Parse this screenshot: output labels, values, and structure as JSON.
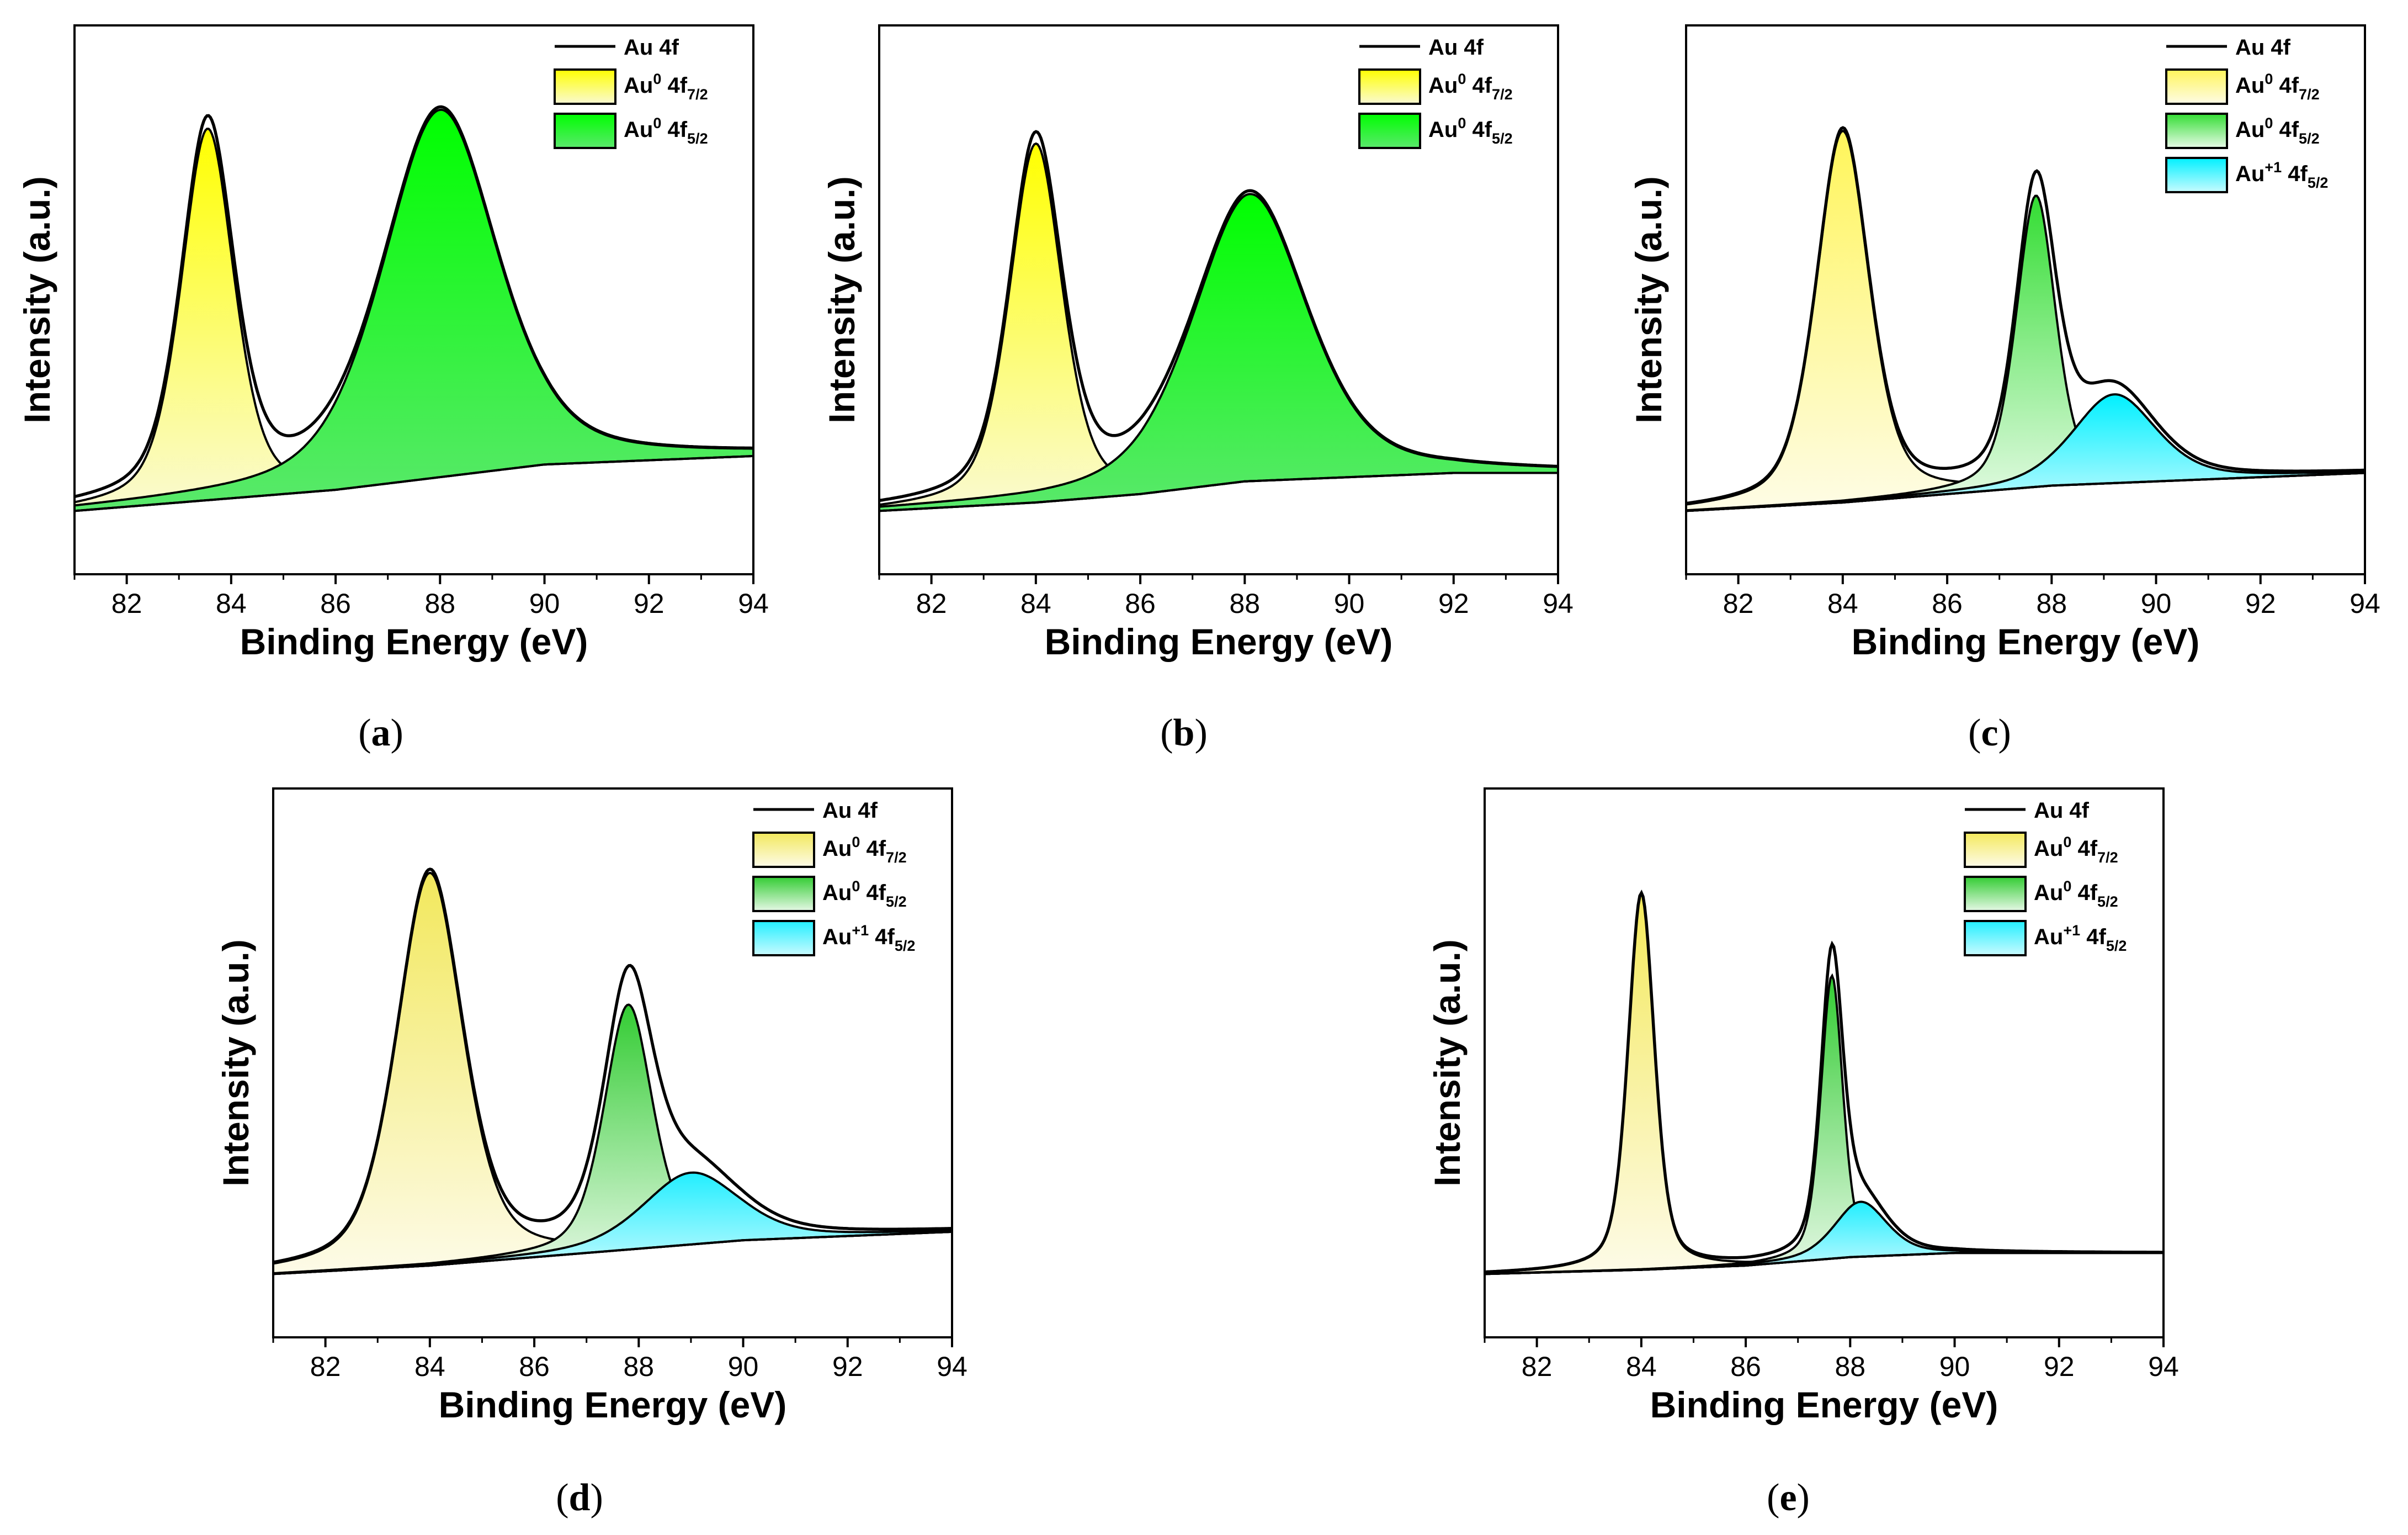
{
  "figure": {
    "panel_count": 5
  },
  "chart_data": [
    {
      "type": "area",
      "panel_label": "a",
      "caption": {
        "open": "(",
        "letter": "a",
        "close": ")"
      },
      "xlabel": "Binding Energy (eV)",
      "ylabel": "Intensity (a.u.)",
      "xlim": [
        81,
        94
      ],
      "ylim": [
        -0.15,
        1.15
      ],
      "xticks": [
        82,
        84,
        86,
        88,
        90,
        92,
        94
      ],
      "legend_position": "top-right",
      "background": {
        "x": [
          81,
          84,
          86,
          88,
          90,
          92,
          94
        ],
        "y": [
          0.0,
          0.03,
          0.05,
          0.08,
          0.11,
          0.12,
          0.13
        ]
      },
      "total_label": "Au 4f",
      "components": [
        {
          "name": "Au0 4f7/2",
          "label_base": "Au",
          "label_sup": "0",
          "label_main": " 4f",
          "label_sub": "7/2",
          "center": 83.55,
          "height": 0.88,
          "width": 0.6,
          "color_top": "#ffff00",
          "color_bottom": "#fafad2"
        },
        {
          "name": "Au0 4f5/2",
          "label_base": "Au",
          "label_sup": "0",
          "label_main": " 4f",
          "label_sub": "5/2",
          "center": 88.0,
          "height": 0.87,
          "width": 1.3,
          "color_top": "#00ff00",
          "color_bottom": "#5ae86c"
        }
      ]
    },
    {
      "type": "area",
      "panel_label": "b",
      "caption": {
        "open": "(",
        "letter": "b",
        "close": ")"
      },
      "xlabel": "Binding Energy (eV)",
      "ylabel": "Intensity (a.u.)",
      "xlim": [
        81,
        94
      ],
      "ylim": [
        -0.15,
        1.15
      ],
      "xticks": [
        82,
        84,
        86,
        88,
        90,
        92,
        94
      ],
      "legend_position": "top-right",
      "background": {
        "x": [
          81,
          84,
          86,
          88,
          90,
          92,
          94
        ],
        "y": [
          0.0,
          0.02,
          0.04,
          0.07,
          0.08,
          0.09,
          0.09
        ]
      },
      "total_label": "Au 4f",
      "components": [
        {
          "name": "Au0 4f7/2",
          "label_base": "Au",
          "label_sup": "0",
          "label_main": " 4f",
          "label_sub": "7/2",
          "center": 84.0,
          "height": 0.85,
          "width": 0.6,
          "color_top": "#ffff00",
          "color_bottom": "#fafad2"
        },
        {
          "name": "Au0 4f5/2",
          "label_base": "Au",
          "label_sup": "0",
          "label_main": " 4f",
          "label_sub": "5/2",
          "center": 88.1,
          "height": 0.68,
          "width": 1.3,
          "color_top": "#00ff00",
          "color_bottom": "#5ae86c"
        }
      ]
    },
    {
      "type": "area",
      "panel_label": "c",
      "caption": {
        "open": "(",
        "letter": "c",
        "close": ")"
      },
      "xlabel": "Binding Energy (eV)",
      "ylabel": "Intensity (a.u.)",
      "xlim": [
        81,
        94
      ],
      "ylim": [
        -0.15,
        1.15
      ],
      "xticks": [
        82,
        84,
        86,
        88,
        90,
        92,
        94
      ],
      "legend_position": "top-right",
      "background": {
        "x": [
          81,
          84,
          86,
          88,
          90,
          92,
          94
        ],
        "y": [
          0.0,
          0.02,
          0.04,
          0.06,
          0.07,
          0.08,
          0.09
        ]
      },
      "total_label": "Au 4f",
      "components": [
        {
          "name": "Au0 4f7/2",
          "label_base": "Au",
          "label_sup": "0",
          "label_main": " 4f",
          "label_sub": "7/2",
          "center": 84.0,
          "height": 0.88,
          "width": 0.6,
          "color_top": "#fff55a",
          "color_bottom": "#fefce6"
        },
        {
          "name": "Au0 4f5/2",
          "label_base": "Au",
          "label_sup": "0",
          "label_main": " 4f",
          "label_sub": "5/2",
          "center": 87.7,
          "height": 0.69,
          "width": 0.45,
          "color_top": "#33dd33",
          "color_bottom": "#e8fbe8"
        },
        {
          "name": "Au+1 4f5/2",
          "label_base": "Au",
          "label_sup": "+1",
          "label_main": " 4f",
          "label_sub": "5/2",
          "center": 89.2,
          "height": 0.21,
          "width": 0.95,
          "color_top": "#00f0ff",
          "color_bottom": "#c8fbff"
        }
      ]
    },
    {
      "type": "area",
      "panel_label": "d",
      "caption": {
        "open": "(",
        "letter": "d",
        "close": ")"
      },
      "xlabel": "Binding Energy (eV)",
      "ylabel": "Intensity (a.u.)",
      "xlim": [
        81,
        94
      ],
      "ylim": [
        -0.15,
        1.15
      ],
      "xticks": [
        82,
        84,
        86,
        88,
        90,
        92,
        94
      ],
      "legend_position": "top-right",
      "background": {
        "x": [
          81,
          84,
          86,
          88,
          90,
          92,
          94
        ],
        "y": [
          0.0,
          0.02,
          0.04,
          0.06,
          0.08,
          0.09,
          0.1
        ]
      },
      "total_label": "Au 4f",
      "components": [
        {
          "name": "Au0 4f7/2",
          "label_base": "Au",
          "label_sup": "0",
          "label_main": " 4f",
          "label_sub": "7/2",
          "center": 84.0,
          "height": 0.93,
          "width": 0.75,
          "color_top": "#f2e85c",
          "color_bottom": "#fdfbe8"
        },
        {
          "name": "Au0 4f5/2",
          "label_base": "Au",
          "label_sup": "0",
          "label_main": " 4f",
          "label_sub": "5/2",
          "center": 87.8,
          "height": 0.58,
          "width": 0.55,
          "color_top": "#33cc33",
          "color_bottom": "#e6f8e6"
        },
        {
          "name": "Au+1 4f5/2",
          "label_base": "Au",
          "label_sup": "+1",
          "label_main": " 4f",
          "label_sub": "5/2",
          "center": 89.0,
          "height": 0.17,
          "width": 1.1,
          "color_top": "#22eeff",
          "color_bottom": "#c9fbff"
        }
      ]
    },
    {
      "type": "area",
      "panel_label": "e",
      "caption": {
        "open": "(",
        "letter": "e",
        "close": ")"
      },
      "xlabel": "Binding Energy (eV)",
      "ylabel": "Intensity (a.u.)",
      "xlim": [
        81,
        94
      ],
      "ylim": [
        -0.15,
        1.15
      ],
      "xticks": [
        82,
        84,
        86,
        88,
        90,
        92,
        94
      ],
      "legend_position": "top-right",
      "background": {
        "x": [
          81,
          84,
          86,
          88,
          90,
          92,
          94
        ],
        "y": [
          0.0,
          0.01,
          0.02,
          0.04,
          0.05,
          0.05,
          0.05
        ]
      },
      "total_label": "Au 4f",
      "components": [
        {
          "name": "Au0 4f7/2",
          "label_base": "Au",
          "label_sup": "0",
          "label_main": " 4f",
          "label_sub": "7/2",
          "center": 84.0,
          "height": 0.89,
          "width": 0.3,
          "color_top": "#f4e95c",
          "color_bottom": "#fdfbe8"
        },
        {
          "name": "Au0 4f5/2",
          "label_base": "Au",
          "label_sup": "0",
          "label_main": " 4f",
          "label_sub": "5/2",
          "center": 87.65,
          "height": 0.67,
          "width": 0.25,
          "color_top": "#33cc33",
          "color_bottom": "#e6f8e6"
        },
        {
          "name": "Au+1 4f5/2",
          "label_base": "Au",
          "label_sup": "+1",
          "label_main": " 4f",
          "label_sub": "5/2",
          "center": 88.2,
          "height": 0.13,
          "width": 0.6,
          "color_top": "#22eeff",
          "color_bottom": "#c9fbff"
        }
      ]
    }
  ]
}
